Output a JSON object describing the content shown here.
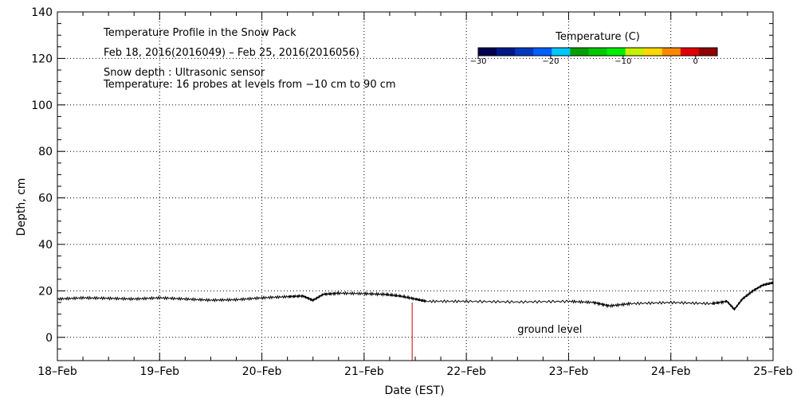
{
  "chart_data": {
    "type": "line",
    "title": "Temperature Profile in the Snow Pack",
    "subtitle": "Feb 18, 2016(2016049) – Feb 25, 2016(2016056)",
    "info_lines": [
      "Snow depth : Ultrasonic sensor",
      "Temperature: 16 probes at levels from −10 cm to 90 cm"
    ],
    "xlabel": "Date (EST)",
    "ylabel": "Depth, cm",
    "xlim": [
      0,
      7
    ],
    "ylim": [
      -10,
      140
    ],
    "x_ticks": [
      {
        "value": 0,
        "label": "18–Feb"
      },
      {
        "value": 1,
        "label": "19–Feb"
      },
      {
        "value": 2,
        "label": "20–Feb"
      },
      {
        "value": 3,
        "label": "21–Feb"
      },
      {
        "value": 4,
        "label": "22–Feb"
      },
      {
        "value": 5,
        "label": "23–Feb"
      },
      {
        "value": 6,
        "label": "24–Feb"
      },
      {
        "value": 7,
        "label": "25–Feb"
      }
    ],
    "y_ticks": [
      0,
      20,
      40,
      60,
      80,
      100,
      120,
      140
    ],
    "grid": true,
    "series": [
      {
        "name": "Snow depth",
        "color": "#000000",
        "points": [
          [
            0.0,
            16.5
          ],
          [
            0.25,
            17.0
          ],
          [
            0.5,
            16.8
          ],
          [
            0.75,
            16.5
          ],
          [
            1.0,
            17.0
          ],
          [
            1.25,
            16.5
          ],
          [
            1.5,
            16.0
          ],
          [
            1.75,
            16.2
          ],
          [
            2.0,
            17.0
          ],
          [
            2.25,
            17.5
          ],
          [
            2.4,
            17.8
          ],
          [
            2.5,
            16.0
          ],
          [
            2.6,
            18.5
          ],
          [
            2.75,
            19.0
          ],
          [
            3.0,
            18.8
          ],
          [
            3.2,
            18.5
          ],
          [
            3.35,
            17.8
          ],
          [
            3.5,
            16.5
          ],
          [
            3.6,
            15.5
          ],
          [
            4.0,
            15.5
          ],
          [
            4.5,
            15.2
          ],
          [
            5.0,
            15.5
          ],
          [
            5.25,
            15.0
          ],
          [
            5.4,
            13.5
          ],
          [
            5.6,
            14.5
          ],
          [
            6.0,
            15.0
          ],
          [
            6.4,
            14.5
          ],
          [
            6.55,
            15.5
          ],
          [
            6.62,
            12.0
          ],
          [
            6.7,
            16.5
          ],
          [
            6.8,
            20.0
          ],
          [
            6.9,
            22.5
          ],
          [
            7.0,
            23.5
          ]
        ]
      }
    ],
    "annotations": [
      {
        "text": "ground level",
        "x": 4.5,
        "y": 2
      }
    ],
    "markers": [
      {
        "name": "ground-level-marker",
        "color": "#cc0000",
        "x": 3.47,
        "y_range": [
          -10,
          15
        ]
      }
    ],
    "colorbar": {
      "title": "Temperature (C)",
      "range": [
        -30,
        3
      ],
      "ticks": [
        -30,
        -20,
        -10,
        0
      ],
      "colors": [
        "#000050",
        "#001888",
        "#0038c0",
        "#0060ff",
        "#00c8ff",
        "#00a000",
        "#00c800",
        "#00ee00",
        "#c8f000",
        "#ffd800",
        "#ff8800",
        "#e00000",
        "#900000"
      ]
    }
  }
}
